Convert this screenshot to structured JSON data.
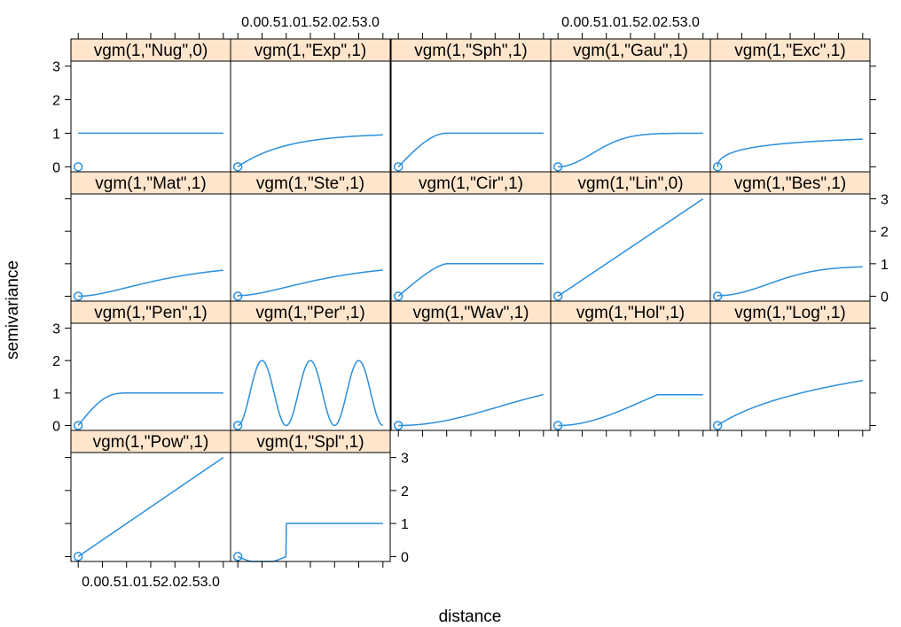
{
  "chart_data": {
    "type": "line",
    "layout": "lattice trellis, 5 columns x 4 rows, alternating axes",
    "xlabel": "distance",
    "ylabel": "semivariance",
    "xlim": [
      -0.15,
      3.15
    ],
    "ylim": [
      -0.15,
      3.15
    ],
    "x_ticks": [
      0,
      0.5,
      1,
      1.5,
      2,
      2.5,
      3
    ],
    "x_tick_labels": [
      "0.0",
      "0.5",
      "1.0",
      "1.5",
      "2.0",
      "2.5",
      "3.0"
    ],
    "y_ticks": [
      0,
      1,
      2,
      3
    ],
    "y_tick_labels": [
      "0",
      "1",
      "2",
      "3"
    ],
    "grid": false,
    "colors": {
      "line": "#2b8fdc",
      "strip": "#ffe5cc",
      "frame": "#000000"
    },
    "marker": "open-circle at origin",
    "panels": [
      {
        "title": "vgm(1,\"Nug\",0)",
        "model": "Nug",
        "range": 0
      },
      {
        "title": "vgm(1,\"Exp\",1)",
        "model": "Exp",
        "range": 1
      },
      {
        "title": "vgm(1,\"Sph\",1)",
        "model": "Sph",
        "range": 1
      },
      {
        "title": "vgm(1,\"Gau\",1)",
        "model": "Gau",
        "range": 1
      },
      {
        "title": "vgm(1,\"Exc\",1)",
        "model": "Exc",
        "range": 1
      },
      {
        "title": "vgm(1,\"Mat\",1)",
        "model": "Mat",
        "range": 1
      },
      {
        "title": "vgm(1,\"Ste\",1)",
        "model": "Ste",
        "range": 1
      },
      {
        "title": "vgm(1,\"Cir\",1)",
        "model": "Cir",
        "range": 1
      },
      {
        "title": "vgm(1,\"Lin\",0)",
        "model": "Lin",
        "range": 0
      },
      {
        "title": "vgm(1,\"Bes\",1)",
        "model": "Bes",
        "range": 1
      },
      {
        "title": "vgm(1,\"Pen\",1)",
        "model": "Pen",
        "range": 1
      },
      {
        "title": "vgm(1,\"Per\",1)",
        "model": "Per",
        "range": 1
      },
      {
        "title": "vgm(1,\"Wav\",1)",
        "model": "Wav",
        "range": 1
      },
      {
        "title": "vgm(1,\"Hol\",1)",
        "model": "Hol",
        "range": 1
      },
      {
        "title": "vgm(1,\"Log\",1)",
        "model": "Log",
        "range": 1
      },
      {
        "title": "vgm(1,\"Pow\",1)",
        "model": "Pow",
        "range": 1
      },
      {
        "title": "vgm(1,\"Spl\",1)",
        "model": "Spl",
        "range": 1
      }
    ]
  }
}
